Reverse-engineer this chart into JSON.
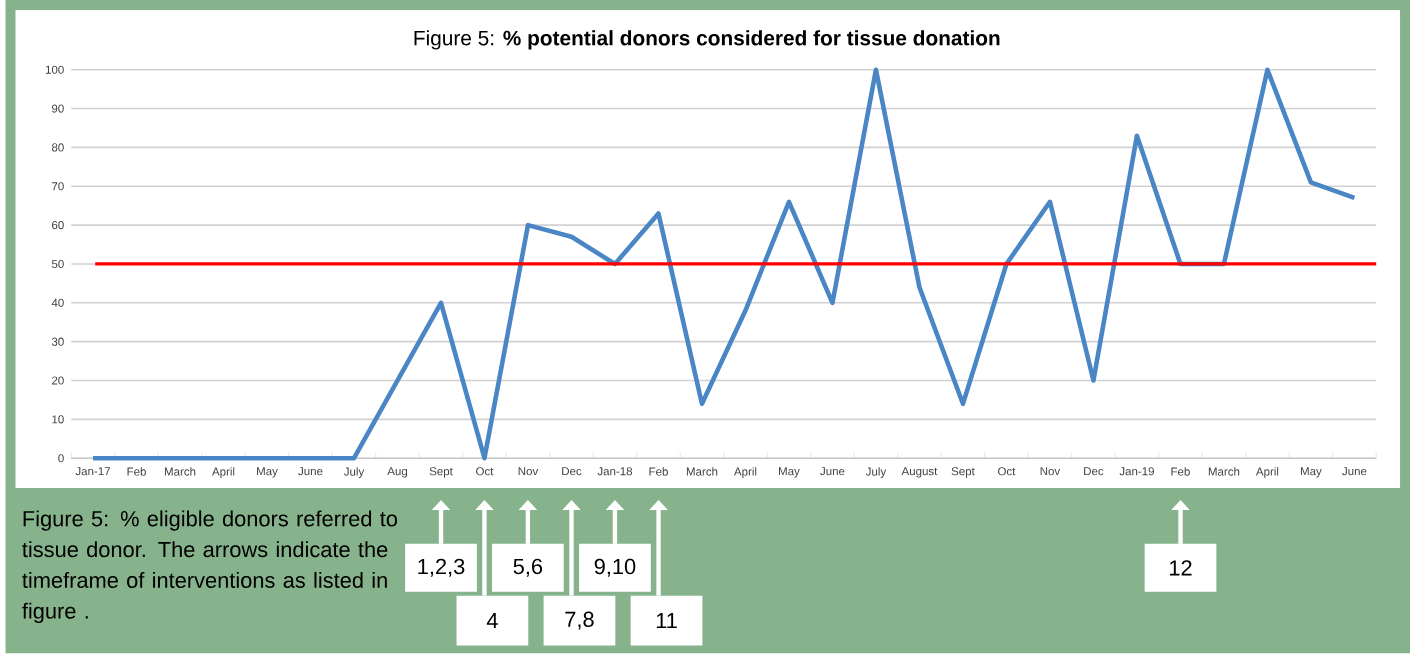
{
  "chart_data": {
    "type": "line",
    "title": "Figure 5:  **% potential donors considered for tissue donation**",
    "categories": [
      "Jan-17",
      "Feb",
      "March",
      "April",
      "May",
      "June",
      "July",
      "Aug",
      "Sept",
      "Oct",
      "Nov",
      "Dec",
      "Jan-18",
      "Feb",
      "March",
      "April",
      "May",
      "June",
      "July",
      "August",
      "Sept",
      "Oct",
      "Nov",
      "Dec",
      "Jan-19",
      "Feb",
      "March",
      "April",
      "May",
      "June"
    ],
    "series": [
      {
        "color": "#4a86c5",
        "values": [
          0,
          0,
          0,
          0,
          0,
          0,
          0,
          20,
          40,
          0,
          60,
          57,
          50,
          63,
          14,
          38,
          66,
          40,
          100,
          44,
          14,
          50,
          66,
          20,
          83,
          50,
          50,
          100,
          71,
          67
        ]
      }
    ],
    "ylim": [
      0,
      100
    ],
    "yticks": [
      0,
      10,
      20,
      30,
      40,
      50,
      60,
      70,
      80,
      90,
      100
    ],
    "grid": "y",
    "ref_lines": [
      {
        "axis": "y",
        "value": 50,
        "color": "#ff0000"
      }
    ],
    "annotations": [
      "Figure 5: % eligible donors referred to tissue donor.  The arrows indicate the timeframe of interventions as listed in figure .",
      "1,2,3",
      "4",
      "5,6",
      "7,8",
      "9,10",
      "11",
      "12"
    ]
  }
}
